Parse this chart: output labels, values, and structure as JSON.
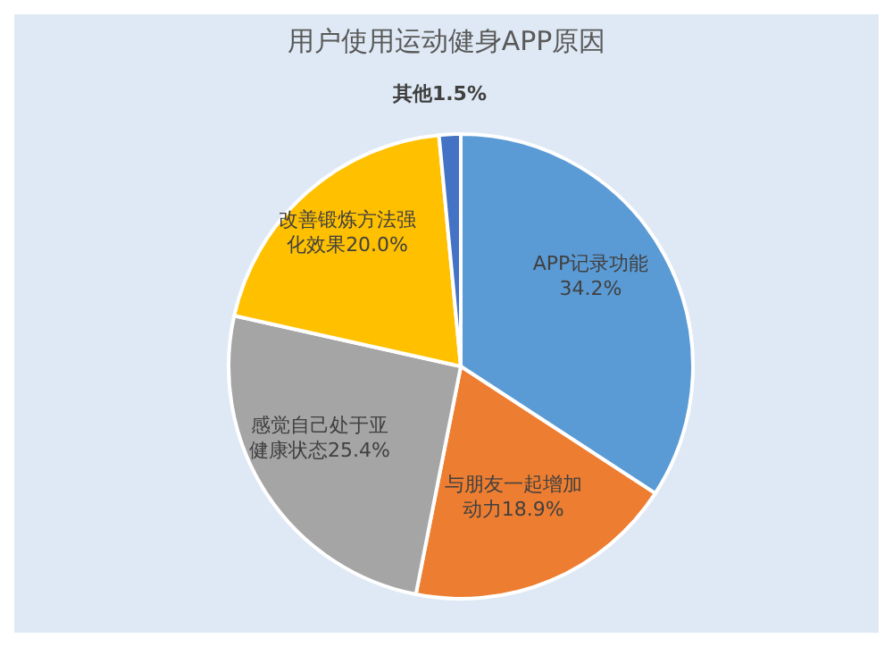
{
  "chart_data": {
    "type": "pie",
    "title": "用户使用运动健身APP原因",
    "categories": [
      "APP记录功能",
      "与朋友一起增加动力",
      "感觉自己处于亚健康状态",
      "改善锻炼方法强化效果",
      "其他"
    ],
    "values": [
      34.2,
      18.9,
      25.4,
      20.0,
      1.5
    ],
    "value_labels": [
      "34.2%",
      "18.9%",
      "25.4%",
      "20.0%",
      "1.5%"
    ],
    "colors": [
      "#5b9bd5",
      "#ed7d31",
      "#a5a5a5",
      "#ffc000",
      "#4472c4"
    ]
  }
}
